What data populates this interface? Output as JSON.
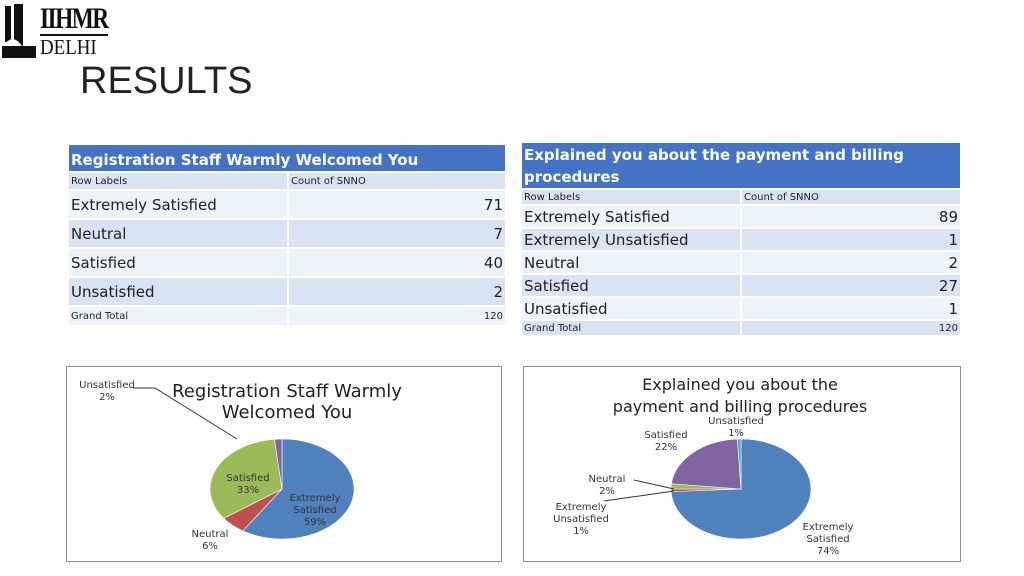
{
  "logo": {
    "line1": "IIHMR",
    "line2": "DELHI"
  },
  "page": {
    "title": "RESULTS"
  },
  "table1": {
    "title": "Registration Staff Warmly Welcomed You",
    "col_labels": "Row Labels",
    "col_count": "Count of SNNO",
    "rows": [
      {
        "label": "Extremely Satisfied",
        "value": "71"
      },
      {
        "label": "Neutral",
        "value": "7"
      },
      {
        "label": "Satisfied",
        "value": "40"
      },
      {
        "label": "Unsatisfied",
        "value": "2"
      }
    ],
    "grand_total_label": "Grand Total",
    "grand_total_value": "120"
  },
  "table2": {
    "title_line1": "Explained you about the payment and billing",
    "title_line2": "procedures",
    "col_labels": "Row Labels",
    "col_count": "Count of SNNO",
    "rows": [
      {
        "label": "Extremely Satisfied",
        "value": "89"
      },
      {
        "label": "Extremely Unsatisfied",
        "value": "1"
      },
      {
        "label": "Neutral",
        "value": "2"
      },
      {
        "label": "Satisfied",
        "value": "27"
      },
      {
        "label": "Unsatisfied",
        "value": "1"
      }
    ],
    "grand_total_label": "Grand Total",
    "grand_total_value": "120"
  },
  "colors": {
    "header_blue": "#4472c4",
    "row_light": "#dae3f3",
    "slice_extremely_satisfied": "#4f81bd",
    "slice_neutral": "#c0504d",
    "slice_satisfied": "#9bbb59",
    "slice_unsatisfied": "#8064a2",
    "slice_extremely_unsatisfied": "#c0504d",
    "slice_neutral2": "#9bbb59"
  },
  "chart_data": [
    {
      "type": "pie",
      "title_line1": "Registration Staff Warmly",
      "title_line2": "Welcomed You",
      "slices": [
        {
          "name": "Extremely Satisfied",
          "value": 71,
          "pct_name1": "Extremely",
          "pct_name2": "Satisfied",
          "pct": "59%",
          "color": "#4f81bd"
        },
        {
          "name": "Neutral",
          "value": 7,
          "pct_name1": "Neutral",
          "pct_name2": "",
          "pct": "6%",
          "color": "#c0504d"
        },
        {
          "name": "Satisfied",
          "value": 40,
          "pct_name1": "Satisfied",
          "pct_name2": "",
          "pct": "33%",
          "color": "#9bbb59"
        },
        {
          "name": "Unsatisfied",
          "value": 2,
          "pct_name1": "Unsatisfied",
          "pct_name2": "",
          "pct": "2%",
          "color": "#8064a2"
        }
      ]
    },
    {
      "type": "pie",
      "title_line1": "Explained you about the",
      "title_line2": "payment and billing procedures",
      "slices": [
        {
          "name": "Extremely Satisfied",
          "value": 89,
          "pct_name1": "Extremely",
          "pct_name2": "Satisfied",
          "pct": "74%",
          "color": "#4f81bd"
        },
        {
          "name": "Extremely Unsatisfied",
          "value": 1,
          "pct_name1": "Extremely",
          "pct_name2": "Unsatisfied",
          "pct": "1%",
          "color": "#c0504d"
        },
        {
          "name": "Neutral",
          "value": 2,
          "pct_name1": "Neutral",
          "pct_name2": "",
          "pct": "2%",
          "color": "#9bbb59"
        },
        {
          "name": "Satisfied",
          "value": 27,
          "pct_name1": "Satisfied",
          "pct_name2": "",
          "pct": "22%",
          "color": "#8064a2"
        },
        {
          "name": "Unsatisfied",
          "value": 1,
          "pct_name1": "Unsatisfied",
          "pct_name2": "",
          "pct": "1%",
          "color": "#4bacc6"
        }
      ]
    }
  ]
}
